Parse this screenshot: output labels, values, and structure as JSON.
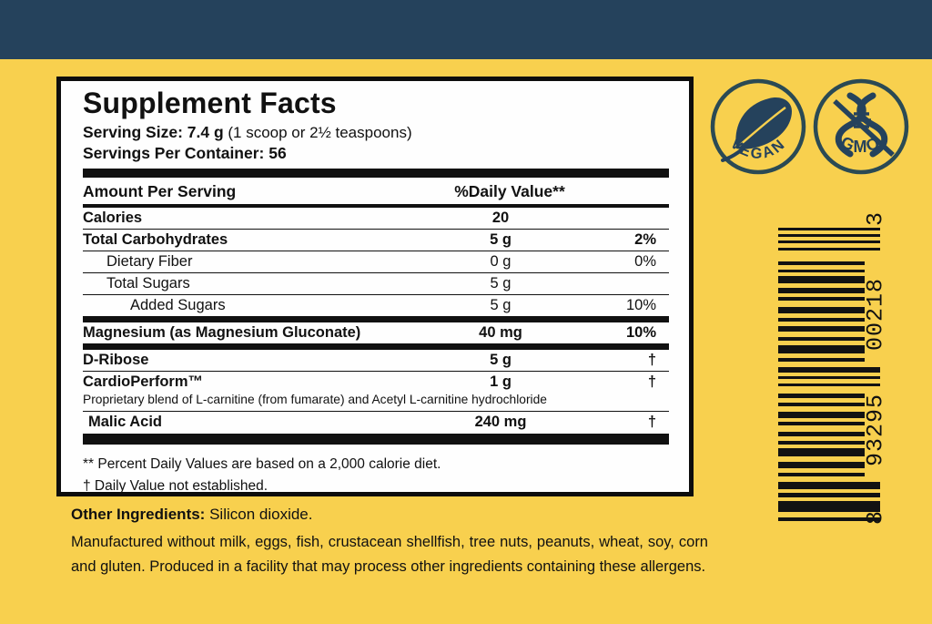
{
  "colors": {
    "background_yellow": "#F8D04E",
    "top_band_navy": "#25425C",
    "panel_white": "#FEFEFE",
    "ink_black": "#111111"
  },
  "supplement_panel": {
    "title": "Supplement Facts",
    "serving_size_bold": "Serving Size: 7.4 g",
    "serving_size_note": "(1 scoop or 2½ teaspoons)",
    "servings_per_container": "Servings Per Container: 56",
    "column_headers": {
      "amount": "Amount Per Serving",
      "daily_value": "%Daily Value**"
    },
    "rows": [
      {
        "name": "Calories",
        "amount": "20",
        "dv": "",
        "indent": 0,
        "bold": true,
        "sep": "thin"
      },
      {
        "name": "Total Carbohydrates",
        "amount": "5 g",
        "dv": "2%",
        "indent": 0,
        "bold": true,
        "sep": "thin"
      },
      {
        "name": "Dietary Fiber",
        "amount": "0 g",
        "dv": "0%",
        "indent": 1,
        "bold": false,
        "sep": "thin"
      },
      {
        "name": "Total Sugars",
        "amount": "5 g",
        "dv": "",
        "indent": 1,
        "bold": false,
        "sep": "thin"
      },
      {
        "name": "Added Sugars",
        "amount": "5 g",
        "dv": "10%",
        "indent": 2,
        "bold": false,
        "sep": "thick"
      },
      {
        "name": "Magnesium (as Magnesium Gluconate)",
        "amount": "40 mg",
        "dv": "10%",
        "indent": 0,
        "bold": true,
        "sep": "thick"
      },
      {
        "name": "D-Ribose",
        "amount": "5 g",
        "dv": "†",
        "indent": 0,
        "bold": true,
        "sep": "thin"
      },
      {
        "name": "CardioPerform™",
        "amount": "1 g",
        "dv": "†",
        "indent": 0,
        "bold": true,
        "sep": "none",
        "note": "Proprietary blend of L-carnitine (from fumarate) and Acetyl L-carnitine hydrochloride",
        "note_sep": "thin"
      },
      {
        "name": "Malic Acid",
        "amount": "240 mg",
        "dv": "†",
        "indent": 0,
        "bold": true,
        "pad": 6,
        "sep": "xthick"
      }
    ],
    "footnotes": [
      "** Percent Daily Values are based on a 2,000 calorie diet.",
      "† Daily Value not established."
    ]
  },
  "badges": {
    "vegan": {
      "label": "VEGAN",
      "icon": "leaf-icon"
    },
    "gmo": {
      "label": "GMO",
      "icon": "dna-crossed-icon"
    }
  },
  "barcode": {
    "digit_bottom": "8",
    "digit_group_lower": "93295",
    "digit_group_upper": "00218",
    "digit_top": "3",
    "bars": [
      [
        3,
        4,
        1
      ],
      [
        3,
        4,
        1
      ],
      [
        3,
        5,
        1
      ],
      [
        3,
        12,
        1
      ],
      [
        4,
        5,
        0
      ],
      [
        3,
        4,
        0
      ],
      [
        8,
        5,
        0
      ],
      [
        6,
        4,
        0
      ],
      [
        4,
        7,
        0
      ],
      [
        7,
        5,
        0
      ],
      [
        4,
        5,
        0
      ],
      [
        6,
        6,
        0
      ],
      [
        4,
        5,
        0
      ],
      [
        9,
        5,
        0
      ],
      [
        4,
        6,
        0
      ],
      [
        6,
        4,
        1
      ],
      [
        3,
        5,
        1
      ],
      [
        3,
        8,
        1
      ],
      [
        5,
        5,
        0
      ],
      [
        4,
        6,
        0
      ],
      [
        7,
        4,
        0
      ],
      [
        4,
        7,
        0
      ],
      [
        5,
        5,
        0
      ],
      [
        4,
        4,
        0
      ],
      [
        9,
        6,
        0
      ],
      [
        7,
        5,
        0
      ],
      [
        4,
        6,
        0
      ],
      [
        8,
        4,
        1
      ],
      [
        5,
        4,
        1
      ],
      [
        12,
        6,
        1
      ],
      [
        4,
        0,
        1
      ]
    ]
  },
  "other_ingredients": {
    "label": "Other Ingredients:",
    "value": " Silicon dioxide."
  },
  "allergen_statement": "Manufactured without milk, eggs, fish, crustacean shellfish, tree nuts, peanuts, wheat, soy, corn and gluten. Produced in a facility that may process other ingredients containing these allergens."
}
